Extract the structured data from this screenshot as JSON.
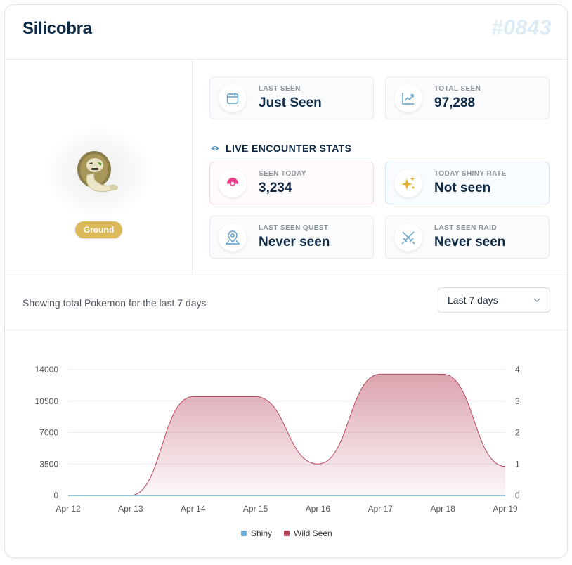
{
  "header": {
    "title": "Silicobra",
    "dex_number": "#0843"
  },
  "pokemon": {
    "type_badge": "Ground",
    "type_color": "#dcb95a"
  },
  "stats": {
    "last_seen": {
      "label": "LAST SEEN",
      "value": "Just Seen",
      "icon": "calendar-icon"
    },
    "total_seen": {
      "label": "TOTAL SEEN",
      "value": "97,288",
      "icon": "trend-chart-icon"
    },
    "section_title": "LIVE ENCOUNTER STATS",
    "seen_today": {
      "label": "SEEN TODAY",
      "value": "3,234",
      "icon": "pokeball-icon"
    },
    "shiny_rate": {
      "label": "TODAY SHINY RATE",
      "value": "Not seen",
      "icon": "sparkles-icon"
    },
    "last_quest": {
      "label": "LAST SEEN QUEST",
      "value": "Never seen",
      "icon": "map-pin-icon"
    },
    "last_raid": {
      "label": "LAST SEEN RAID",
      "value": "Never seen",
      "icon": "crossed-swords-icon"
    }
  },
  "filter": {
    "description": "Showing total Pokemon for the last 7 days",
    "range_selected": "Last 7 days"
  },
  "colors": {
    "wild_seen": "#b8475e",
    "shiny": "#6aaed6",
    "accent_pink": "#e83e8c",
    "accent_gold": "#e2b02a",
    "icon_blue": "#5b9ec9"
  },
  "chart_data": {
    "type": "area",
    "x": [
      "Apr 12",
      "Apr 13",
      "Apr 14",
      "Apr 15",
      "Apr 16",
      "Apr 17",
      "Apr 18",
      "Apr 19"
    ],
    "left_axis": {
      "ticks": [
        0,
        3500,
        7000,
        10500,
        14000
      ],
      "ylim": [
        0,
        14000
      ]
    },
    "right_axis": {
      "ticks": [
        0,
        1,
        2,
        3,
        4
      ],
      "ylim": [
        0,
        4
      ]
    },
    "series": [
      {
        "name": "Shiny",
        "axis": "right",
        "values": [
          0,
          0,
          0,
          0,
          0,
          0,
          0,
          0
        ]
      },
      {
        "name": "Wild Seen",
        "axis": "left",
        "values": [
          0,
          0,
          11000,
          11000,
          3500,
          13500,
          13500,
          3234
        ]
      }
    ],
    "grid": true,
    "legend_position": "bottom"
  }
}
